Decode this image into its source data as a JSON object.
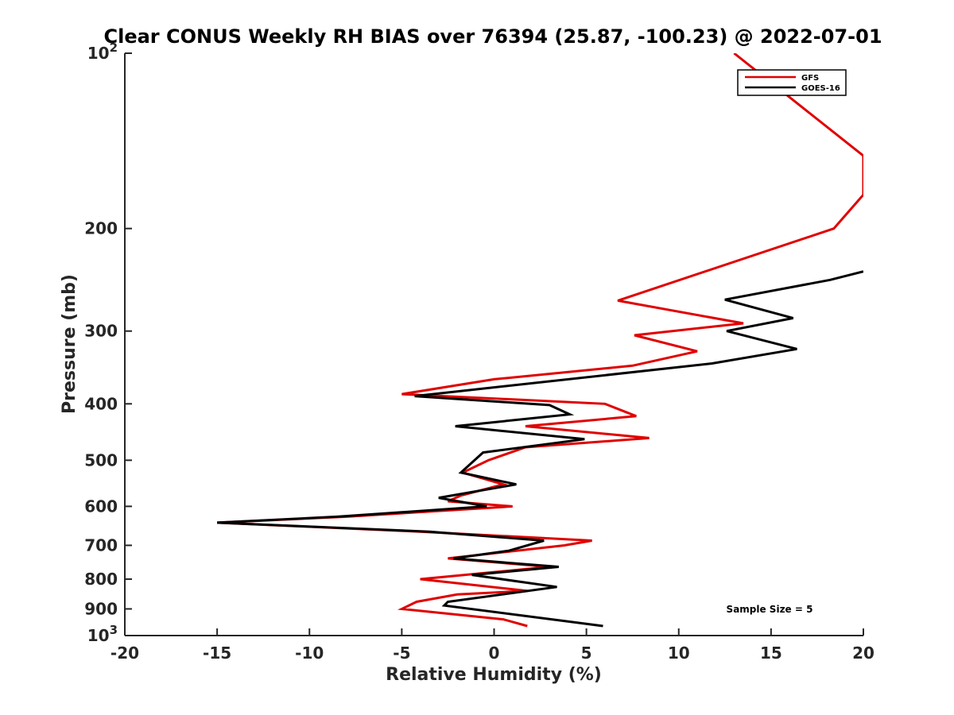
{
  "chart_data": {
    "type": "line",
    "title": "Clear CONUS Weekly RH BIAS over 76394 (25.87, -100.23) @ 2022-07-01",
    "xlabel": "Relative Humidity (%)",
    "ylabel": "Pressure (mb)",
    "xlim": [
      -20,
      20
    ],
    "ylim": [
      100,
      1000
    ],
    "y_scale": "log",
    "y_reversed": true,
    "grid": false,
    "legend_position": "top-right",
    "x_ticks": [
      {
        "value": -20,
        "label": "-20"
      },
      {
        "value": -15,
        "label": "-15"
      },
      {
        "value": -10,
        "label": "-10"
      },
      {
        "value": -5,
        "label": "-5"
      },
      {
        "value": 0,
        "label": "0"
      },
      {
        "value": 5,
        "label": "5"
      },
      {
        "value": 10,
        "label": "10"
      },
      {
        "value": 15,
        "label": "15"
      },
      {
        "value": 20,
        "label": "20"
      }
    ],
    "y_ticks": [
      {
        "value": 100,
        "label": "10",
        "exp": "2"
      },
      {
        "value": 200,
        "label": "200"
      },
      {
        "value": 300,
        "label": "300"
      },
      {
        "value": 400,
        "label": "400"
      },
      {
        "value": 500,
        "label": "500"
      },
      {
        "value": 600,
        "label": "600"
      },
      {
        "value": 700,
        "label": "700"
      },
      {
        "value": 800,
        "label": "800"
      },
      {
        "value": 900,
        "label": "900"
      },
      {
        "value": 1000,
        "label": "10",
        "exp": "3"
      }
    ],
    "annotation": "Sample Size = 5",
    "series": [
      {
        "name": "GFS",
        "color": "#e00000",
        "points": [
          {
            "x": 13.0,
            "p": 100
          },
          {
            "x": 20.0,
            "p": 150
          },
          {
            "x": 20.0,
            "p": 175
          },
          {
            "x": 18.4,
            "p": 200
          },
          {
            "x": 6.7,
            "p": 266
          },
          {
            "x": 13.5,
            "p": 291
          },
          {
            "x": 7.6,
            "p": 305
          },
          {
            "x": 11.0,
            "p": 325
          },
          {
            "x": 7.5,
            "p": 344
          },
          {
            "x": 0.0,
            "p": 363
          },
          {
            "x": -5.0,
            "p": 385
          },
          {
            "x": 6.0,
            "p": 400
          },
          {
            "x": 7.7,
            "p": 420
          },
          {
            "x": 1.7,
            "p": 437
          },
          {
            "x": 8.4,
            "p": 458
          },
          {
            "x": 1.7,
            "p": 475
          },
          {
            "x": -0.3,
            "p": 500
          },
          {
            "x": -1.7,
            "p": 525
          },
          {
            "x": 0.5,
            "p": 550
          },
          {
            "x": -1.8,
            "p": 575
          },
          {
            "x": -2.5,
            "p": 588
          },
          {
            "x": 1.0,
            "p": 600
          },
          {
            "x": -8.0,
            "p": 625
          },
          {
            "x": -15.0,
            "p": 640
          },
          {
            "x": -4.0,
            "p": 663
          },
          {
            "x": 5.3,
            "p": 687
          },
          {
            "x": 3.8,
            "p": 700
          },
          {
            "x": -2.5,
            "p": 737
          },
          {
            "x": 3.0,
            "p": 762
          },
          {
            "x": -4.0,
            "p": 800
          },
          {
            "x": 1.8,
            "p": 838
          },
          {
            "x": -2.0,
            "p": 850
          },
          {
            "x": -4.2,
            "p": 875
          },
          {
            "x": -5.0,
            "p": 900
          },
          {
            "x": 0.5,
            "p": 938
          },
          {
            "x": 1.8,
            "p": 963
          }
        ]
      },
      {
        "name": "GOES-16",
        "color": "#000000",
        "points": [
          {
            "x": 20.0,
            "p": 237
          },
          {
            "x": 18.2,
            "p": 245
          },
          {
            "x": 12.5,
            "p": 265
          },
          {
            "x": 16.2,
            "p": 285
          },
          {
            "x": 12.6,
            "p": 300
          },
          {
            "x": 16.4,
            "p": 322
          },
          {
            "x": 11.8,
            "p": 341
          },
          {
            "x": -4.3,
            "p": 388
          },
          {
            "x": 3.0,
            "p": 402
          },
          {
            "x": 4.1,
            "p": 417
          },
          {
            "x": -2.1,
            "p": 437
          },
          {
            "x": 4.9,
            "p": 460
          },
          {
            "x": -0.6,
            "p": 485
          },
          {
            "x": -1.8,
            "p": 525
          },
          {
            "x": 1.2,
            "p": 550
          },
          {
            "x": -3.0,
            "p": 580
          },
          {
            "x": -0.4,
            "p": 600
          },
          {
            "x": -8.5,
            "p": 625
          },
          {
            "x": -15.0,
            "p": 640
          },
          {
            "x": -3.5,
            "p": 663
          },
          {
            "x": 2.7,
            "p": 687
          },
          {
            "x": 0.8,
            "p": 715
          },
          {
            "x": -2.2,
            "p": 737
          },
          {
            "x": 3.5,
            "p": 762
          },
          {
            "x": -1.2,
            "p": 787
          },
          {
            "x": 3.4,
            "p": 825
          },
          {
            "x": -2.5,
            "p": 875
          },
          {
            "x": -2.7,
            "p": 888
          },
          {
            "x": 4.5,
            "p": 950
          },
          {
            "x": 5.9,
            "p": 963
          }
        ]
      }
    ]
  }
}
